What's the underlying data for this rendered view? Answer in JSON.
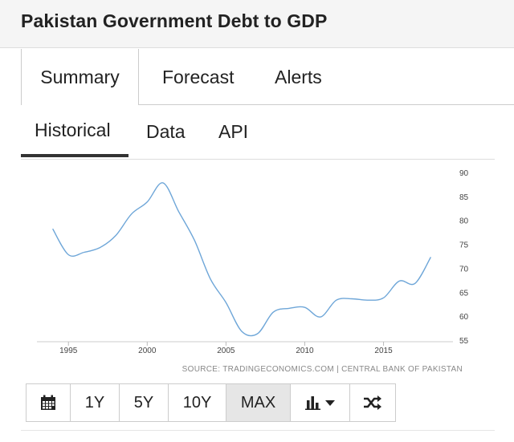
{
  "title": "Pakistan Government Debt to GDP",
  "top_tabs": [
    {
      "label": "Summary"
    },
    {
      "label": "Forecast"
    },
    {
      "label": "Alerts"
    }
  ],
  "sub_tabs": [
    {
      "label": "Historical",
      "active": true
    },
    {
      "label": "Data"
    },
    {
      "label": "API"
    }
  ],
  "chart_data": {
    "type": "line",
    "title": "",
    "xlabel": "",
    "ylabel": "",
    "x_ticks": [
      "1995",
      "2000",
      "2005",
      "2010",
      "2015"
    ],
    "y_ticks": [
      "90",
      "85",
      "80",
      "75",
      "70",
      "65",
      "60",
      "55"
    ],
    "xlim": [
      1993.0,
      2019.0
    ],
    "ylim": [
      55,
      90
    ],
    "grid": false,
    "series": [
      {
        "color": "#6ea6d8",
        "x": [
          1994.0,
          1995.0,
          1996.0,
          1997.0,
          1998.0,
          1999.0,
          2000.0,
          2001.0,
          2002.0,
          2003.0,
          2004.0,
          2005.0,
          2006.0,
          2007.0,
          2008.0,
          2009.0,
          2010.0,
          2011.0,
          2012.0,
          2013.0,
          2014.0,
          2015.0,
          2016.0,
          2017.0,
          2018.0
        ],
        "y": [
          78.4,
          73.0,
          73.5,
          74.5,
          77.0,
          81.5,
          84.0,
          88.0,
          82.0,
          76.0,
          68.0,
          63.0,
          57.0,
          56.5,
          61.0,
          61.8,
          62.0,
          60.0,
          63.5,
          63.8,
          63.5,
          64.0,
          67.5,
          67.0,
          72.5
        ]
      }
    ],
    "source": "SOURCE: TRADINGECONOMICS.COM | CENTRAL BANK OF PAKISTAN"
  },
  "toolbar": {
    "calendar_icon": "calendar-icon",
    "ranges": [
      {
        "label": "1Y"
      },
      {
        "label": "5Y"
      },
      {
        "label": "10Y"
      },
      {
        "label": "MAX",
        "active": true
      }
    ],
    "chart_type_icon": "bar-chart-icon",
    "dropdown_icon": "caret-down-icon",
    "compare_icon": "shuffle-icon"
  }
}
